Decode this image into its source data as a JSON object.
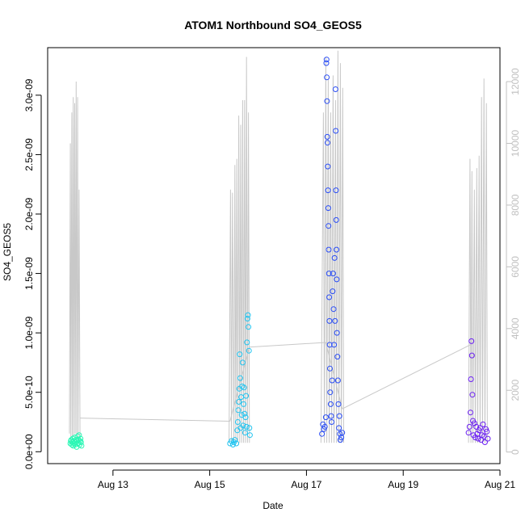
{
  "chart_data": {
    "type": "scatter",
    "title": "ATOM1 Northbound SO4_GEOS5",
    "xlabel": "Date",
    "ylabel": "SO4_GEOS5",
    "xlim": [
      11.65,
      21.0
    ],
    "ylim": [
      -1e-10,
      3.4e-09
    ],
    "x_ticks": [
      {
        "value": 13,
        "label": "Aug 13"
      },
      {
        "value": 15,
        "label": "Aug 15"
      },
      {
        "value": 17,
        "label": "Aug 17"
      },
      {
        "value": 19,
        "label": "Aug 19"
      },
      {
        "value": 21,
        "label": "Aug 21"
      }
    ],
    "y_ticks": [
      {
        "value": 0,
        "label": "0.0e+00"
      },
      {
        "value": 5e-10,
        "label": "5.0e-10"
      },
      {
        "value": 1e-09,
        "label": "1.0e-09"
      },
      {
        "value": 1.5e-09,
        "label": "1.5e-09"
      },
      {
        "value": 2e-09,
        "label": "2.0e-09"
      },
      {
        "value": 2.5e-09,
        "label": "2.5e-09"
      },
      {
        "value": 3e-09,
        "label": "3.0e-09"
      }
    ],
    "y2_ticks": [
      {
        "value": 0,
        "label": "0"
      },
      {
        "value": 2000,
        "label": "2000"
      },
      {
        "value": 4000,
        "label": "4000"
      },
      {
        "value": 6000,
        "label": "6000"
      },
      {
        "value": 8000,
        "label": "8000"
      },
      {
        "value": 10000,
        "label": "10000"
      },
      {
        "value": 12000,
        "label": "12000"
      }
    ],
    "y2lim": [
      -375,
      13100
    ],
    "grid": false,
    "colors": {
      "altitude_line": "#c8c8c8",
      "frame": "#000000",
      "right_axis": "#c0c0c0"
    },
    "series": [
      {
        "color": "#2bf7b5",
        "points": [
          [
            12.12,
            7e-11
          ],
          [
            12.13,
            9e-11
          ],
          [
            12.14,
            1e-10
          ],
          [
            12.15,
            6e-11
          ],
          [
            12.16,
            8e-11
          ],
          [
            12.17,
            1.1e-10
          ],
          [
            12.18,
            5e-11
          ],
          [
            12.19,
            9e-11
          ],
          [
            12.2,
            7e-11
          ],
          [
            12.21,
            1.2e-10
          ],
          [
            12.22,
            6e-11
          ],
          [
            12.23,
            8e-11
          ],
          [
            12.24,
            1e-10
          ],
          [
            12.25,
            4e-11
          ],
          [
            12.26,
            9e-11
          ],
          [
            12.27,
            1.3e-10
          ],
          [
            12.28,
            7e-11
          ],
          [
            12.29,
            1e-10
          ],
          [
            12.3,
            1.4e-10
          ],
          [
            12.31,
            6e-11
          ],
          [
            12.32,
            9e-11
          ],
          [
            12.33,
            1.1e-10
          ],
          [
            12.34,
            8e-11
          ],
          [
            12.35,
            5e-11
          ]
        ]
      },
      {
        "color": "#21c4f0",
        "points": [
          [
            15.42,
            7e-11
          ],
          [
            15.45,
            9e-11
          ],
          [
            15.48,
            6e-11
          ],
          [
            15.5,
            8e-11
          ],
          [
            15.52,
            1e-10
          ],
          [
            15.55,
            7e-11
          ],
          [
            15.57,
            1.8e-10
          ],
          [
            15.58,
            2.5e-10
          ],
          [
            15.59,
            3.5e-10
          ],
          [
            15.6,
            4.2e-10
          ],
          [
            15.61,
            5.3e-10
          ],
          [
            15.62,
            8.2e-10
          ],
          [
            15.63,
            6.2e-10
          ],
          [
            15.64,
            2e-10
          ],
          [
            15.65,
            4.6e-10
          ],
          [
            15.66,
            3.1e-10
          ],
          [
            15.67,
            5.5e-10
          ],
          [
            15.68,
            7.5e-10
          ],
          [
            15.69,
            2.2e-10
          ],
          [
            15.7,
            4e-10
          ],
          [
            15.71,
            5.4e-10
          ],
          [
            15.72,
            3.2e-10
          ],
          [
            15.73,
            1.6e-10
          ],
          [
            15.74,
            2.9e-10
          ],
          [
            15.75,
            4.7e-10
          ],
          [
            15.76,
            2.1e-10
          ],
          [
            15.77,
            9.2e-10
          ],
          [
            15.78,
            1.12e-09
          ],
          [
            15.79,
            1.15e-09
          ],
          [
            15.8,
            1.05e-09
          ],
          [
            15.81,
            8.5e-10
          ],
          [
            15.82,
            2e-10
          ],
          [
            15.83,
            1.4e-10
          ]
        ]
      },
      {
        "color": "#2a4df5",
        "points": [
          [
            17.32,
            1.5e-10
          ],
          [
            17.34,
            2.3e-10
          ],
          [
            17.36,
            1.9e-10
          ],
          [
            17.38,
            2.1e-10
          ],
          [
            17.4,
            2.9e-10
          ],
          [
            17.41,
            3.27e-09
          ],
          [
            17.415,
            3.3e-09
          ],
          [
            17.42,
            3.15e-09
          ],
          [
            17.425,
            2.95e-09
          ],
          [
            17.43,
            2.65e-09
          ],
          [
            17.435,
            2.6e-09
          ],
          [
            17.44,
            2.4e-09
          ],
          [
            17.445,
            2.2e-09
          ],
          [
            17.45,
            2.05e-09
          ],
          [
            17.455,
            1.9e-09
          ],
          [
            17.46,
            1.7e-09
          ],
          [
            17.465,
            1.5e-09
          ],
          [
            17.47,
            1.3e-09
          ],
          [
            17.475,
            1.1e-09
          ],
          [
            17.48,
            9e-10
          ],
          [
            17.485,
            7e-10
          ],
          [
            17.49,
            5e-10
          ],
          [
            17.5,
            4e-10
          ],
          [
            17.51,
            3e-10
          ],
          [
            17.52,
            2.5e-10
          ],
          [
            17.53,
            6e-10
          ],
          [
            17.54,
            1.35e-09
          ],
          [
            17.55,
            1.5e-09
          ],
          [
            17.56,
            1.2e-09
          ],
          [
            17.57,
            9e-10
          ],
          [
            17.58,
            1.63e-09
          ],
          [
            17.59,
            1.1e-09
          ],
          [
            17.6,
            3.05e-09
          ],
          [
            17.605,
            2.7e-09
          ],
          [
            17.61,
            2.2e-09
          ],
          [
            17.615,
            1.95e-09
          ],
          [
            17.62,
            1.7e-09
          ],
          [
            17.625,
            1.45e-09
          ],
          [
            17.63,
            1e-09
          ],
          [
            17.64,
            8e-10
          ],
          [
            17.65,
            6e-10
          ],
          [
            17.66,
            4e-10
          ],
          [
            17.67,
            2e-10
          ],
          [
            17.68,
            3e-10
          ],
          [
            17.69,
            1.5e-10
          ],
          [
            17.7,
            1e-10
          ],
          [
            17.72,
            1.2e-10
          ],
          [
            17.74,
            1.6e-10
          ]
        ]
      },
      {
        "color": "#6b1ff2",
        "points": [
          [
            20.35,
            1.6e-10
          ],
          [
            20.37,
            2.1e-10
          ],
          [
            20.39,
            3.3e-10
          ],
          [
            20.4,
            6.1e-10
          ],
          [
            20.41,
            9.3e-10
          ],
          [
            20.42,
            8.1e-10
          ],
          [
            20.43,
            4.8e-10
          ],
          [
            20.44,
            2.6e-10
          ],
          [
            20.45,
            1.4e-10
          ],
          [
            20.47,
            2.4e-10
          ],
          [
            20.49,
            1.2e-10
          ],
          [
            20.51,
            2.1e-10
          ],
          [
            20.53,
            1.5e-10
          ],
          [
            20.55,
            1.1e-10
          ],
          [
            20.57,
            1.8e-10
          ],
          [
            20.59,
            2e-10
          ],
          [
            20.61,
            1e-10
          ],
          [
            20.63,
            1.4e-10
          ],
          [
            20.65,
            2.3e-10
          ],
          [
            20.67,
            1.3e-10
          ],
          [
            20.69,
            8e-11
          ],
          [
            20.71,
            1.9e-10
          ],
          [
            20.73,
            1.7e-10
          ],
          [
            20.75,
            1.1e-10
          ]
        ]
      }
    ],
    "altitude_profile": [
      [
        12.1,
        600
      ],
      [
        12.12,
        10000
      ],
      [
        12.13,
        300
      ],
      [
        12.15,
        11000
      ],
      [
        12.16,
        400
      ],
      [
        12.18,
        11500
      ],
      [
        12.19,
        500
      ],
      [
        12.21,
        11300
      ],
      [
        12.22,
        600
      ],
      [
        12.24,
        12000
      ],
      [
        12.25,
        300
      ],
      [
        12.27,
        11500
      ],
      [
        12.28,
        400
      ],
      [
        12.3,
        8500
      ],
      [
        12.32,
        300
      ],
      [
        15.4,
        300
      ],
      [
        15.43,
        8500
      ],
      [
        15.45,
        300
      ],
      [
        15.47,
        8400
      ],
      [
        15.5,
        300
      ],
      [
        15.52,
        9300
      ],
      [
        15.54,
        300
      ],
      [
        15.56,
        9500
      ],
      [
        15.58,
        300
      ],
      [
        15.6,
        10900
      ],
      [
        15.62,
        300
      ],
      [
        15.64,
        10600
      ],
      [
        15.66,
        300
      ],
      [
        15.68,
        11400
      ],
      [
        15.7,
        300
      ],
      [
        15.72,
        11400
      ],
      [
        15.74,
        300
      ],
      [
        15.76,
        12800
      ],
      [
        15.78,
        300
      ],
      [
        15.8,
        11000
      ],
      [
        15.82,
        300
      ],
      [
        17.3,
        300
      ],
      [
        17.35,
        11000
      ],
      [
        17.37,
        300
      ],
      [
        17.4,
        12800
      ],
      [
        17.42,
        300
      ],
      [
        17.45,
        12100
      ],
      [
        17.47,
        300
      ],
      [
        17.5,
        11000
      ],
      [
        17.52,
        300
      ],
      [
        17.55,
        12200
      ],
      [
        17.57,
        300
      ],
      [
        17.6,
        11400
      ],
      [
        17.62,
        300
      ],
      [
        17.65,
        13000
      ],
      [
        17.67,
        300
      ],
      [
        17.7,
        12600
      ],
      [
        17.72,
        300
      ],
      [
        17.75,
        11800
      ],
      [
        17.77,
        300
      ],
      [
        20.35,
        300
      ],
      [
        20.38,
        9500
      ],
      [
        20.4,
        300
      ],
      [
        20.42,
        9100
      ],
      [
        20.44,
        300
      ],
      [
        20.47,
        8500
      ],
      [
        20.49,
        300
      ],
      [
        20.52,
        9200
      ],
      [
        20.54,
        300
      ],
      [
        20.57,
        9600
      ],
      [
        20.59,
        300
      ],
      [
        20.62,
        11500
      ],
      [
        20.64,
        300
      ],
      [
        20.67,
        12100
      ],
      [
        20.69,
        300
      ],
      [
        20.72,
        11300
      ],
      [
        20.74,
        300
      ]
    ],
    "altitude_connectors": [
      [
        12.32,
        1100
      ],
      [
        15.42,
        1000
      ],
      [
        15.82,
        3400
      ],
      [
        17.4,
        3550
      ],
      [
        17.74,
        1400
      ],
      [
        20.42,
        3500
      ]
    ]
  }
}
